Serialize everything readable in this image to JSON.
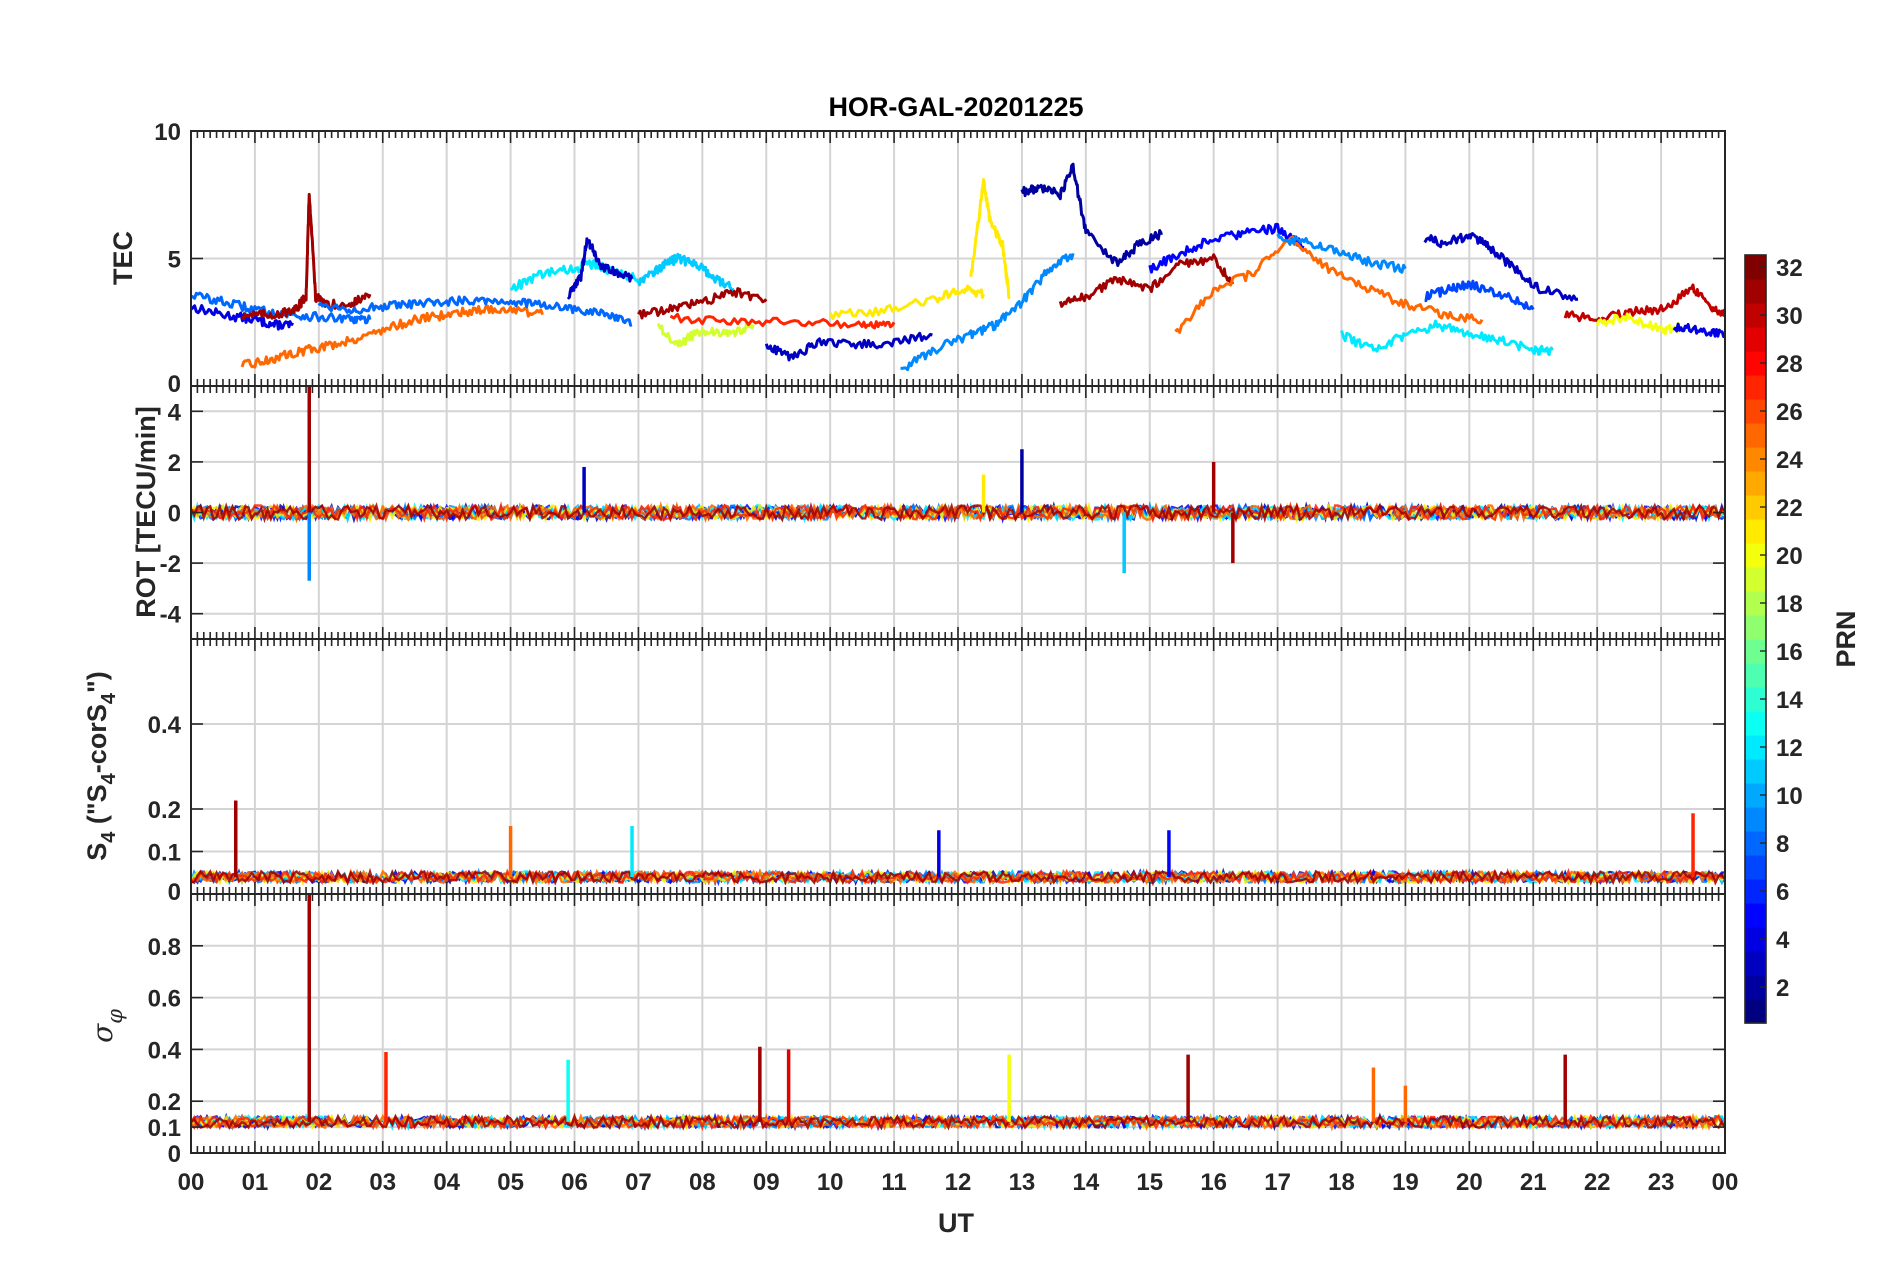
{
  "title": "HOR-GAL-20201225",
  "xlabel": "UT",
  "x_ticks": [
    "00",
    "01",
    "02",
    "03",
    "04",
    "05",
    "06",
    "07",
    "08",
    "09",
    "10",
    "11",
    "12",
    "13",
    "14",
    "15",
    "16",
    "17",
    "18",
    "19",
    "20",
    "21",
    "22",
    "23",
    "00"
  ],
  "panels": {
    "tec": {
      "ylabel": "TEC",
      "ylim": [
        0,
        10
      ],
      "ticks": [
        "0",
        "5",
        "10"
      ],
      "tick_values": [
        0,
        5,
        10
      ]
    },
    "rot": {
      "ylabel": "ROT [TECU/min]",
      "ylim": [
        -5,
        5
      ],
      "ticks": [
        "-4",
        "-2",
        "0",
        "2",
        "4"
      ],
      "tick_values": [
        -4,
        -2,
        0,
        2,
        4
      ]
    },
    "s4": {
      "ylabel_main": "S",
      "ylabel_sub": "4",
      "ylabel_rest_1": " (\"S",
      "ylabel_rest_sub": "4",
      "ylabel_rest_2": "-corS",
      "ylabel_rest_sub2": "4",
      "ylabel_rest_3": "\")",
      "ylim": [
        0,
        0.6
      ],
      "ticks": [
        "0",
        "0.1",
        "0.2",
        "0.4"
      ],
      "tick_values": [
        0,
        0.1,
        0.2,
        0.4
      ]
    },
    "sigma": {
      "ylabel_symbol": "σ",
      "ylabel_sub": "φ",
      "ylim": [
        0,
        1
      ],
      "ticks": [
        "0",
        "0.1",
        "0.2",
        "0.4",
        "0.6",
        "0.8"
      ],
      "tick_values": [
        0,
        0.1,
        0.2,
        0.4,
        0.6,
        0.8
      ]
    }
  },
  "colorbar": {
    "label": "PRN",
    "ticks": [
      "2",
      "4",
      "6",
      "8",
      "10",
      "12",
      "14",
      "16",
      "18",
      "20",
      "22",
      "24",
      "26",
      "28",
      "30",
      "32"
    ],
    "range": [
      1,
      32
    ],
    "colormap": "jet"
  },
  "chart_data": {
    "type": "line",
    "title": "HOR-GAL-20201225",
    "xlabel": "UT",
    "xlim": [
      0,
      24
    ],
    "grid": true,
    "color_by": "PRN",
    "panels": [
      {
        "name": "TEC",
        "ylim": [
          0,
          10
        ],
        "series": [
          {
            "prn": 4,
            "x": [
              0,
              0.5,
              1.0,
              1.3,
              1.6
            ],
            "y": [
              3.1,
              2.8,
              2.6,
              2.4,
              2.4
            ]
          },
          {
            "prn": 8,
            "x": [
              0,
              0.5,
              1.0,
              1.5,
              2.0,
              2.5,
              2.8
            ],
            "y": [
              3.6,
              3.3,
              3.0,
              2.8,
              2.7,
              2.6,
              2.6
            ]
          },
          {
            "prn": 31,
            "x": [
              0.8,
              1.2,
              1.6,
              1.8,
              1.85,
              1.95,
              2.1,
              2.5,
              2.8
            ],
            "y": [
              2.8,
              2.8,
              2.9,
              3.5,
              7.6,
              3.5,
              3.2,
              3.2,
              3.6
            ]
          },
          {
            "prn": 25,
            "x": [
              0.8,
              1.2,
              1.6,
              2.0,
              2.5,
              3.0,
              3.5,
              4.0,
              4.5,
              5.0,
              5.5
            ],
            "y": [
              0.8,
              1.0,
              1.3,
              1.5,
              1.8,
              2.2,
              2.6,
              2.8,
              3.0,
              3.0,
              2.8
            ]
          },
          {
            "prn": 8,
            "x": [
              2.0,
              2.5,
              3.0,
              3.5,
              4.0,
              4.5,
              5.0,
              5.5,
              6.0,
              6.5,
              6.9
            ],
            "y": [
              3.2,
              3.0,
              3.1,
              3.2,
              3.3,
              3.4,
              3.3,
              3.2,
              3.0,
              2.8,
              2.4
            ]
          },
          {
            "prn": 12,
            "x": [
              5.0,
              5.5,
              6.0,
              6.3,
              6.6,
              7.0
            ],
            "y": [
              3.8,
              4.4,
              4.6,
              4.8,
              4.5,
              4.2
            ]
          },
          {
            "prn": 3,
            "x": [
              5.9,
              6.1,
              6.2,
              6.4,
              6.6,
              6.9
            ],
            "y": [
              3.5,
              4.3,
              5.8,
              4.7,
              4.5,
              4.2
            ]
          },
          {
            "prn": 11,
            "x": [
              7.0,
              7.3,
              7.6,
              7.9,
              8.2,
              8.5
            ],
            "y": [
              4.1,
              4.6,
              5.0,
              4.8,
              4.2,
              3.8
            ]
          },
          {
            "prn": 31,
            "x": [
              7.0,
              7.5,
              8.0,
              8.5,
              9.0
            ],
            "y": [
              2.8,
              3.0,
              3.3,
              3.7,
              3.4
            ]
          },
          {
            "prn": 19,
            "x": [
              7.3,
              7.6,
              8.0,
              8.4,
              8.8
            ],
            "y": [
              2.4,
              1.6,
              2.2,
              2.0,
              2.4
            ]
          },
          {
            "prn": 27,
            "x": [
              7.5,
              8.5,
              9.5,
              10.5,
              11.0
            ],
            "y": [
              2.7,
              2.5,
              2.5,
              2.4,
              2.5
            ]
          },
          {
            "prn": 3,
            "x": [
              9.0,
              9.4,
              9.8,
              10.4,
              11.0,
              11.6
            ],
            "y": [
              1.6,
              1.1,
              1.7,
              1.6,
              1.7,
              2.0
            ]
          },
          {
            "prn": 21,
            "x": [
              10.0,
              10.8,
              11.6,
              12.1,
              12.4
            ],
            "y": [
              2.8,
              2.9,
              3.4,
              3.8,
              3.6
            ]
          },
          {
            "prn": 21,
            "x": [
              12.2,
              12.4,
              12.5,
              12.7,
              12.8
            ],
            "y": [
              4.2,
              8.0,
              6.5,
              5.5,
              3.5
            ]
          },
          {
            "prn": 9,
            "x": [
              11.1,
              11.6,
              12.2,
              12.6,
              13.0,
              13.4,
              13.8
            ],
            "y": [
              0.6,
              1.4,
              2.0,
              2.4,
              3.3,
              4.5,
              5.2
            ]
          },
          {
            "prn": 2,
            "x": [
              13.0,
              13.3,
              13.6,
              13.8,
              14.0,
              14.5,
              14.8,
              15.2
            ],
            "y": [
              7.6,
              7.8,
              7.5,
              8.6,
              6.0,
              4.8,
              5.5,
              6.0
            ]
          },
          {
            "prn": 31,
            "x": [
              13.6,
              14.0,
              14.5,
              15.0,
              15.5,
              16.0,
              16.3
            ],
            "y": [
              3.2,
              3.5,
              4.2,
              3.8,
              4.8,
              5.0,
              4.0
            ]
          },
          {
            "prn": 5,
            "x": [
              15.0,
              15.5,
              16.0,
              16.5,
              17.0,
              17.4
            ],
            "y": [
              4.6,
              5.2,
              5.8,
              6.0,
              6.2,
              5.5
            ]
          },
          {
            "prn": 25,
            "x": [
              15.4,
              16.0,
              16.6,
              17.2,
              17.8,
              18.4,
              19.0,
              19.6,
              20.2
            ],
            "y": [
              2.0,
              3.8,
              4.4,
              5.8,
              4.6,
              3.8,
              3.2,
              2.8,
              2.6
            ]
          },
          {
            "prn": 9,
            "x": [
              17.0,
              17.5,
              18.0,
              18.5,
              19.0
            ],
            "y": [
              5.8,
              5.6,
              5.2,
              4.8,
              4.6
            ]
          },
          {
            "prn": 12,
            "x": [
              18.0,
              18.5,
              19.0,
              19.5,
              20.0,
              20.5,
              21.0,
              21.3
            ],
            "y": [
              2.0,
              1.4,
              2.0,
              2.4,
              2.0,
              1.8,
              1.4,
              1.4
            ]
          },
          {
            "prn": 3,
            "x": [
              19.3,
              19.6,
              20.0,
              20.3,
              20.7,
              21.1,
              21.7
            ],
            "y": [
              5.8,
              5.6,
              5.9,
              5.5,
              4.6,
              3.8,
              3.4
            ]
          },
          {
            "prn": 7,
            "x": [
              19.3,
              19.7,
              20.0,
              20.5,
              21.0
            ],
            "y": [
              3.5,
              3.8,
              4.0,
              3.6,
              3.0
            ]
          },
          {
            "prn": 30,
            "x": [
              21.5,
              22.0,
              22.5,
              23.0,
              23.5,
              23.8,
              24.0
            ],
            "y": [
              2.8,
              2.6,
              2.9,
              3.0,
              3.8,
              3.0,
              2.8
            ]
          },
          {
            "prn": 20,
            "x": [
              22.0,
              22.5,
              23.0,
              23.3
            ],
            "y": [
              2.5,
              2.7,
              2.2,
              2.3
            ]
          },
          {
            "prn": 4,
            "x": [
              23.2,
              23.6,
              24.0
            ],
            "y": [
              2.3,
              2.2,
              2.0
            ]
          }
        ]
      },
      {
        "name": "ROT",
        "ylim": [
          -5,
          5
        ],
        "spikes": [
          {
            "prn": 31,
            "x": 1.85,
            "y": 5.0
          },
          {
            "prn": 9,
            "x": 1.85,
            "y": -2.7
          },
          {
            "prn": 3,
            "x": 6.15,
            "y": 1.8
          },
          {
            "prn": 21,
            "x": 12.4,
            "y": 1.5
          },
          {
            "prn": 2,
            "x": 13.0,
            "y": 2.5
          },
          {
            "prn": 11,
            "x": 14.6,
            "y": -2.4
          },
          {
            "prn": 31,
            "x": 16.0,
            "y": 2.0
          },
          {
            "prn": 31,
            "x": 16.3,
            "y": -2.0
          }
        ],
        "baseline": 0
      },
      {
        "name": "S4",
        "ylim": [
          0,
          0.6
        ],
        "spikes": [
          {
            "prn": 31,
            "x": 0.7,
            "y": 0.22
          },
          {
            "prn": 25,
            "x": 5.0,
            "y": 0.16
          },
          {
            "prn": 12,
            "x": 6.9,
            "y": 0.16
          },
          {
            "prn": 4,
            "x": 11.7,
            "y": 0.15
          },
          {
            "prn": 5,
            "x": 15.3,
            "y": 0.15
          },
          {
            "prn": 27,
            "x": 23.5,
            "y": 0.19
          }
        ],
        "baseline": 0.04
      },
      {
        "name": "sigma_phi",
        "ylim": [
          0,
          1
        ],
        "spikes": [
          {
            "prn": 31,
            "x": 1.85,
            "y": 1.0
          },
          {
            "prn": 27,
            "x": 3.05,
            "y": 0.39
          },
          {
            "prn": 13,
            "x": 5.9,
            "y": 0.36
          },
          {
            "prn": 31,
            "x": 8.9,
            "y": 0.41
          },
          {
            "prn": 29,
            "x": 9.35,
            "y": 0.4
          },
          {
            "prn": 20,
            "x": 12.8,
            "y": 0.38
          },
          {
            "prn": 31,
            "x": 15.6,
            "y": 0.38
          },
          {
            "prn": 25,
            "x": 18.5,
            "y": 0.33
          },
          {
            "prn": 25,
            "x": 19.0,
            "y": 0.26
          },
          {
            "prn": 31,
            "x": 21.5,
            "y": 0.38
          }
        ],
        "baseline": 0.12
      }
    ]
  }
}
